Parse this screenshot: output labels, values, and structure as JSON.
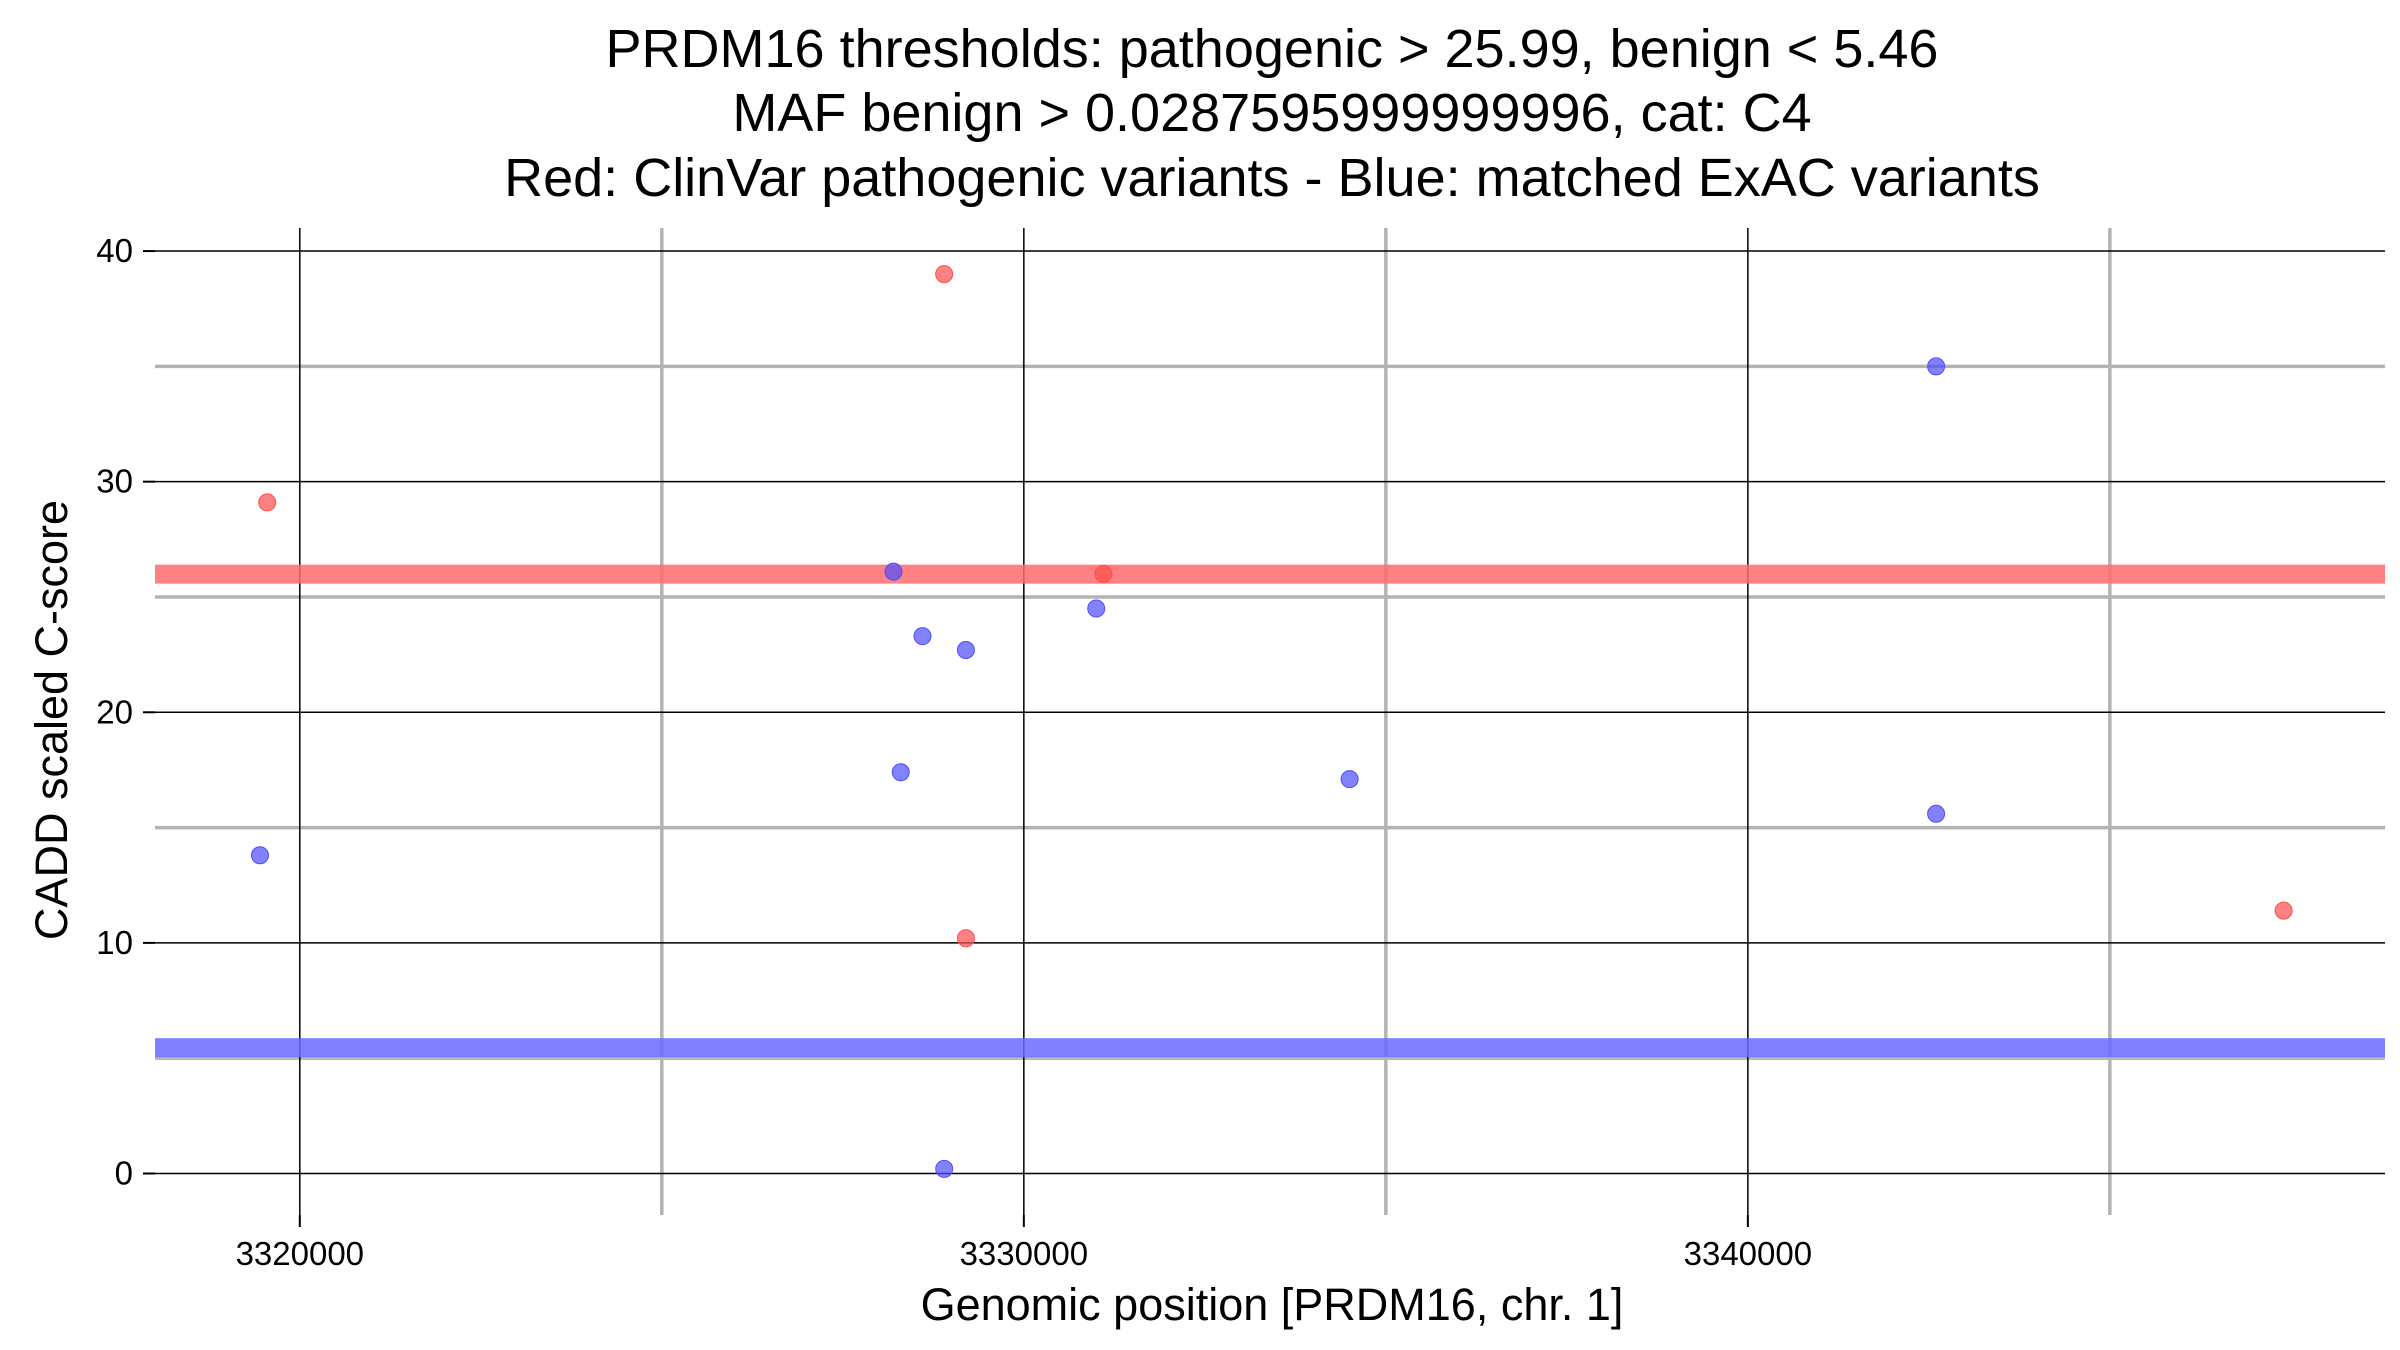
{
  "chart_data": {
    "type": "scatter",
    "title": [
      "PRDM16 thresholds: pathogenic > 25.99, benign < 5.46",
      "MAF benign > 0.0287595999999996, cat: C4",
      "Red: ClinVar pathogenic variants - Blue: matched ExAC variants"
    ],
    "xlabel": "Genomic position [PRDM16, chr. 1]",
    "ylabel": "CADD scaled C-score",
    "xlim": [
      3318000,
      3348800
    ],
    "ylim": [
      -1.8,
      41
    ],
    "x_major_ticks": [
      3320000,
      3330000,
      3340000
    ],
    "x_tick_labels": [
      "3320000",
      "3330000",
      "3340000"
    ],
    "x_minor_grid": [
      3325000,
      3335000,
      3345000
    ],
    "y_major_ticks": [
      0,
      10,
      20,
      30,
      40
    ],
    "y_tick_labels": [
      "0",
      "10",
      "20",
      "30",
      "40"
    ],
    "y_minor_grid": [
      5,
      15,
      25,
      35
    ],
    "thresholds": [
      {
        "name": "pathogenic",
        "value": 25.99,
        "color": "#ff6b6b"
      },
      {
        "name": "benign",
        "value": 5.46,
        "color": "#6b6bff"
      }
    ],
    "series": [
      {
        "name": "ClinVar pathogenic variants",
        "color": "#ff4d4d",
        "points": [
          {
            "x": 3319550,
            "y": 29.1
          },
          {
            "x": 3328900,
            "y": 39.0
          },
          {
            "x": 3329200,
            "y": 10.2
          },
          {
            "x": 3331100,
            "y": 26.0
          },
          {
            "x": 3347400,
            "y": 11.4
          }
        ]
      },
      {
        "name": "matched ExAC variants",
        "color": "#4d4dff",
        "points": [
          {
            "x": 3319450,
            "y": 13.8
          },
          {
            "x": 3328200,
            "y": 26.1
          },
          {
            "x": 3328300,
            "y": 17.4
          },
          {
            "x": 3328600,
            "y": 23.3
          },
          {
            "x": 3328900,
            "y": 0.2
          },
          {
            "x": 3329200,
            "y": 22.7
          },
          {
            "x": 3331000,
            "y": 24.5
          },
          {
            "x": 3334500,
            "y": 17.1
          },
          {
            "x": 3342600,
            "y": 15.6
          },
          {
            "x": 3342600,
            "y": 35.0
          }
        ]
      }
    ]
  }
}
